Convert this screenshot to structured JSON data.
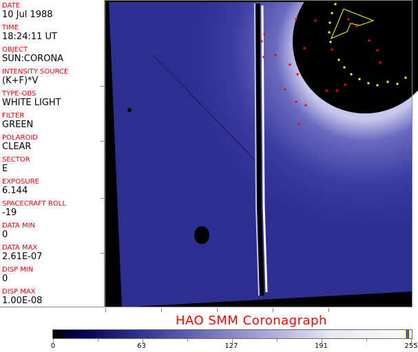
{
  "fields": [
    {
      "label": "DATE",
      "value": "10 Jul 1988"
    },
    {
      "label": "TIME",
      "value": "18:24:11 UT"
    },
    {
      "label": "OBJECT",
      "value": "SUN:CORONA"
    },
    {
      "label": "INTENSITY SOURCE",
      "value": "(K+F)*V"
    },
    {
      "label": "TYPE-OBS",
      "value": "WHITE LIGHT"
    },
    {
      "label": "FILTER",
      "value": "GREEN"
    },
    {
      "label": "POLAROID",
      "value": "CLEAR"
    },
    {
      "label": "SECTOR",
      "value": "E"
    },
    {
      "label": "EXPOSURE",
      "value": "6.144"
    },
    {
      "label": "SPACECRAFT ROLL",
      "value": "-19"
    },
    {
      "label": "DATA MIN",
      "value": "0"
    },
    {
      "label": "DATA MAX",
      "value": "2.61E-07"
    },
    {
      "label": "DISP MIN",
      "value": "0"
    },
    {
      "label": "DISP MAX",
      "value": "1.00E-08"
    }
  ],
  "title": "HAO  SMM Coronagraph",
  "colorbar": {
    "labels": [
      "0",
      "63",
      "127",
      "191",
      "255"
    ],
    "range": [
      0,
      255
    ]
  },
  "colors": {
    "label": "#ff0000",
    "image": "#2a2a8a",
    "overlay_red": "#ff0000",
    "overlay_yellow": "#ffff00"
  }
}
